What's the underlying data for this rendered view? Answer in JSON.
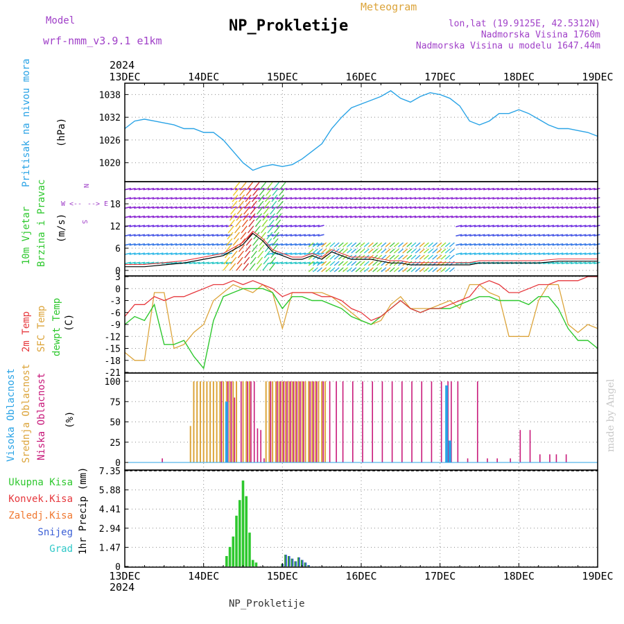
{
  "header": {
    "model_label": "Model",
    "model_name": "wrf-nmm_v3.9.1 e1km",
    "title": "NP_Prokletije",
    "subtitle": "Meteogram",
    "coords": "lon,lat (19.9125E, 42.5312N)",
    "elevation": "Nadmorska Visina 1760m",
    "model_elevation": "Nadmorska Visina u modelu 1647.44m",
    "footer_name": "NP_Prokletije",
    "watermark": "made by Angel",
    "year_top": "2024",
    "year_bottom": "2024"
  },
  "colors": {
    "pressure": "#29a3e6",
    "temp2m": "#e6373c",
    "sfc": "#dca43a",
    "dewpt": "#2ec82e",
    "high_cloud": "#29a3e6",
    "mid_cloud": "#dca43a",
    "low_cloud": "#c8197a",
    "rain": "#2ec82e",
    "snow": "#3b5fd6",
    "model_text": "#a040c8"
  },
  "x_axis": {
    "labels": [
      "13DEC",
      "14DEC",
      "15DEC",
      "16DEC",
      "17DEC",
      "18DEC",
      "19DEC"
    ],
    "range_hours": [
      0,
      144
    ]
  },
  "panels": {
    "pressure": {
      "ylabel_long": "Pritisak na nivou mora",
      "unit": "(hPa)",
      "ylim": [
        1015,
        1041
      ],
      "ticks": [
        "1038",
        "1032",
        "1026",
        "1020"
      ]
    },
    "wind": {
      "ylabel_1": "10m Vjetar",
      "ylabel_2": "Brzina i Pravac",
      "unit": "(m/s)",
      "ylim": [
        0,
        23
      ],
      "ticks": [
        "18",
        "12",
        "6",
        "0"
      ],
      "compass": {
        "n": "N",
        "w": "W",
        "e": "E",
        "s": "S",
        "arrow_left": "<--",
        "arrow_right": "-->"
      }
    },
    "temp": {
      "ylabel_1": "2m Temp",
      "ylabel_2": "SFC Temp",
      "ylabel_3": "dewpt Temp",
      "unit": "(C)",
      "ylim": [
        -21,
        3
      ],
      "ticks": [
        "3",
        "0",
        "-3",
        "-6",
        "-9",
        "-12",
        "-15",
        "-18",
        "-21"
      ]
    },
    "cloud": {
      "ylabel_1": "Visoka Oblacnost",
      "ylabel_2": "Srednja Oblacnost",
      "ylabel_3": "Niska Oblacnost",
      "unit": "(%)",
      "ylim": [
        0,
        100
      ],
      "ticks": [
        "100",
        "75",
        "50",
        "25",
        "0"
      ]
    },
    "precip": {
      "legend": [
        "Ukupna Kisa",
        "Konvek.Kisa",
        "Zaledj.Kisa",
        "Snijeg",
        "Grad"
      ],
      "legend_colors": [
        "#2ec82e",
        "#e6373c",
        "#f07830",
        "#3b5fd6",
        "#2ec8c8"
      ],
      "ylabel": "1hr Precip (mm)",
      "ylim": [
        0,
        7.35
      ],
      "ticks": [
        "7.35",
        "5.88",
        "4.41",
        "2.94",
        "1.47",
        "0"
      ]
    }
  },
  "chart_data": [
    {
      "type": "line",
      "name": "pressure",
      "x_unit": "hours from 13DEC 00",
      "series": [
        {
          "x": [
            0,
            3,
            6,
            9,
            12,
            15,
            18,
            21,
            24,
            27,
            30,
            33,
            36,
            39,
            42,
            45,
            48,
            51,
            54,
            57,
            60,
            63,
            66,
            69,
            72,
            75,
            78,
            81,
            84,
            87,
            90,
            93,
            96,
            99,
            102,
            105,
            108,
            111,
            114,
            117,
            120,
            123,
            126,
            129,
            132,
            135,
            138,
            141,
            144
          ],
          "values": [
            1029,
            1031,
            1031.5,
            1031,
            1030.5,
            1030,
            1029,
            1029,
            1028,
            1028,
            1026,
            1023,
            1020,
            1018,
            1019,
            1019.5,
            1019,
            1019.5,
            1021,
            1023,
            1025,
            1029,
            1032,
            1034.5,
            1035.5,
            1036.5,
            1037.5,
            1039,
            1037,
            1036,
            1037.5,
            1038.5,
            1038,
            1037,
            1035,
            1031,
            1030,
            1031,
            1033,
            1033,
            1034,
            1033,
            1031.5,
            1030,
            1029,
            1029,
            1028.5,
            1028,
            1027
          ]
        }
      ]
    },
    {
      "type": "line",
      "name": "wind speed",
      "x_unit": "hours from 13DEC 00",
      "series": [
        {
          "x": [
            0,
            6,
            12,
            18,
            24,
            30,
            36,
            39,
            42,
            45,
            48,
            51,
            54,
            57,
            60,
            63,
            66,
            69,
            72,
            75,
            78,
            81,
            84,
            87,
            90,
            93,
            96,
            99,
            102,
            105,
            108,
            114,
            120,
            126,
            132,
            138,
            144
          ],
          "values": [
            1,
            1,
            1.5,
            2,
            3,
            4,
            7,
            10,
            8,
            5,
            4,
            3,
            3,
            4,
            3,
            5,
            4,
            3,
            3,
            3,
            2.5,
            2,
            2,
            1.5,
            1.5,
            1.5,
            1.5,
            1.5,
            1.5,
            1.5,
            2,
            2,
            2,
            2,
            2.5,
            2.5,
            2.5
          ]
        }
      ]
    },
    {
      "type": "line",
      "name": "temperature",
      "x_unit": "hours from 13DEC 00",
      "series": [
        {
          "name": "2m Temp",
          "x": [
            0,
            3,
            6,
            9,
            12,
            15,
            18,
            21,
            24,
            27,
            30,
            33,
            36,
            39,
            42,
            45,
            48,
            51,
            54,
            57,
            60,
            63,
            66,
            69,
            72,
            75,
            78,
            81,
            84,
            87,
            90,
            93,
            96,
            99,
            102,
            105,
            108,
            111,
            114,
            117,
            120,
            123,
            126,
            129,
            132,
            135,
            138,
            141,
            144
          ],
          "values": [
            -7,
            -4,
            -4,
            -2,
            -3,
            -2,
            -2,
            -1,
            0,
            1,
            1,
            2,
            1,
            2,
            1,
            0,
            -2,
            -1,
            -1,
            -1,
            -2,
            -2,
            -3,
            -5,
            -6,
            -8,
            -7,
            -5,
            -3,
            -5,
            -6,
            -5,
            -5,
            -4,
            -3,
            -2,
            1,
            2,
            1,
            -1,
            -1,
            0,
            1,
            1,
            2,
            2,
            2,
            3,
            3
          ]
        },
        {
          "name": "SFC Temp",
          "x": [
            0,
            3,
            6,
            9,
            12,
            15,
            18,
            21,
            24,
            27,
            30,
            33,
            36,
            39,
            42,
            45,
            48,
            51,
            54,
            57,
            60,
            63,
            66,
            69,
            72,
            75,
            78,
            81,
            84,
            87,
            90,
            93,
            96,
            99,
            102,
            105,
            108,
            111,
            114,
            117,
            120,
            123,
            126,
            129,
            132,
            135,
            138,
            141,
            144
          ],
          "values": [
            -16,
            -18,
            -18,
            -1,
            -1,
            -15,
            -14,
            -11,
            -9,
            -3,
            -1,
            1,
            0,
            -1,
            1,
            -1,
            -10,
            -1,
            -1,
            -1,
            -1,
            -2,
            -4,
            -6,
            -8,
            -9,
            -8,
            -4,
            -2,
            -5,
            -5,
            -5,
            -4,
            -3,
            -5,
            1,
            1,
            -1,
            -2,
            -12,
            -12,
            -12,
            -3,
            1,
            1,
            -9,
            -11,
            -9,
            -10
          ]
        },
        {
          "name": "dewpt Temp",
          "x": [
            0,
            3,
            6,
            9,
            12,
            15,
            18,
            21,
            24,
            27,
            30,
            33,
            36,
            39,
            42,
            45,
            48,
            51,
            54,
            57,
            60,
            63,
            66,
            69,
            72,
            75,
            78,
            81,
            84,
            87,
            90,
            93,
            96,
            99,
            102,
            105,
            108,
            111,
            114,
            117,
            120,
            123,
            126,
            129,
            132,
            135,
            138,
            141,
            144
          ],
          "values": [
            -9,
            -7,
            -8,
            -4,
            -14,
            -14,
            -13,
            -17,
            -20,
            -8,
            -2,
            -1,
            0,
            0,
            0,
            -1,
            -5,
            -2,
            -2,
            -3,
            -3,
            -4,
            -5,
            -7,
            -8,
            -9,
            -7,
            -5,
            -3,
            -5,
            -6,
            -5,
            -5,
            -5,
            -4,
            -3,
            -2,
            -2,
            -3,
            -3,
            -3,
            -4,
            -2,
            -2,
            -5,
            -10,
            -13,
            -13,
            -15
          ]
        }
      ]
    },
    {
      "type": "bar",
      "name": "cloudiness",
      "x_unit": "hours from 13DEC 00",
      "series": [
        {
          "name": "Srednja Oblacnost",
          "x": [
            20,
            21,
            22,
            23,
            24,
            25,
            26,
            27,
            28,
            29,
            30,
            31,
            32,
            33,
            34,
            36,
            37,
            38,
            43,
            44,
            45,
            46,
            47,
            48,
            49,
            50,
            51,
            52,
            53,
            54,
            55,
            56,
            57,
            58,
            59,
            60,
            61
          ],
          "values": [
            45,
            100,
            100,
            100,
            100,
            100,
            100,
            100,
            100,
            100,
            100,
            100,
            100,
            100,
            100,
            100,
            100,
            100,
            100,
            100,
            100,
            100,
            100,
            100,
            100,
            100,
            100,
            100,
            100,
            100,
            100,
            100,
            100,
            100,
            100,
            100,
            100
          ]
        },
        {
          "name": "Niska Oblacnost",
          "x": [
            11,
            29,
            31,
            32,
            33,
            35,
            37,
            38,
            39,
            40,
            41,
            42,
            44,
            46,
            47,
            48,
            49,
            50,
            51,
            52,
            53,
            54,
            56,
            57,
            58,
            60,
            62,
            64,
            66,
            69,
            72,
            75,
            78,
            81,
            84,
            87,
            90,
            93,
            96,
            98,
            99,
            101,
            104,
            107,
            110,
            113,
            117,
            120,
            123,
            126,
            129,
            131,
            134
          ],
          "values": [
            5,
            100,
            100,
            100,
            80,
            100,
            100,
            100,
            100,
            42,
            40,
            5,
            100,
            100,
            100,
            100,
            100,
            100,
            100,
            100,
            100,
            100,
            100,
            100,
            100,
            100,
            100,
            100,
            100,
            100,
            100,
            100,
            100,
            100,
            100,
            100,
            100,
            100,
            100,
            100,
            100,
            100,
            5,
            100,
            5,
            5,
            5,
            40,
            40,
            10,
            10,
            10,
            10
          ]
        },
        {
          "name": "Visoka Oblacnost",
          "x": [
            31,
            98,
            99
          ],
          "values": [
            75,
            95,
            27
          ]
        }
      ]
    },
    {
      "type": "bar",
      "name": "precipitation",
      "x_unit": "hours from 13DEC 00",
      "series": [
        {
          "name": "Ukupna Kisa",
          "x": [
            31,
            32,
            33,
            34,
            35,
            36,
            37,
            38,
            39,
            40
          ],
          "values": [
            0.8,
            1.5,
            2.3,
            3.9,
            5.1,
            6.6,
            5.4,
            2.6,
            0.5,
            0.3
          ]
        },
        {
          "name": "Snijeg",
          "x": [
            48,
            49,
            50,
            51,
            52,
            53,
            54,
            55,
            56
          ],
          "values": [
            0.2,
            0.9,
            0.8,
            0.6,
            0.4,
            0.7,
            0.5,
            0.3,
            0.1
          ]
        }
      ]
    }
  ]
}
